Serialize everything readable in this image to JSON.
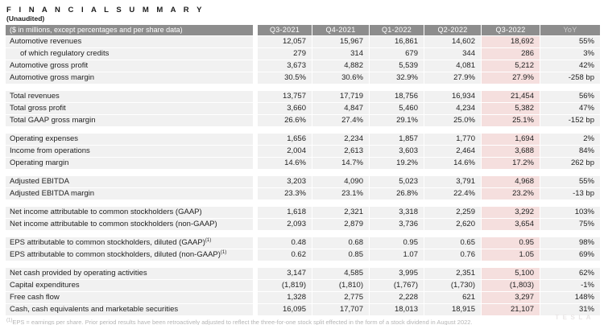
{
  "page": {
    "title": "F I N A N C I A L   S U M M A R Y",
    "subtitle": "(Unaudited)",
    "footnote_sup": "(1)",
    "footnote": "EPS = earnings per share. Prior period results have been retroactively adjusted to reflect the three-for-one stock split effected in the form of a stock dividend in August 2022.",
    "watermark": "TESLA"
  },
  "colors": {
    "header_bg": "#8d8d8d",
    "header_text": "#ffffff",
    "yoy_header_text": "#cfcfcf",
    "row_bg": "#f1f1f1",
    "highlight_bg": "#f5dfde",
    "body_text": "#222222",
    "footnote_text": "#b5b5b5"
  },
  "table": {
    "label_header": "($ in millions, except percentages and per share data)",
    "columns": [
      "Q3-2021",
      "Q4-2021",
      "Q1-2022",
      "Q2-2022",
      "Q3-2022",
      "YoY"
    ],
    "highlight_column_index": 4,
    "sections": [
      {
        "rows": [
          {
            "label": "Automotive revenues",
            "values": [
              "12,057",
              "15,967",
              "16,861",
              "14,602",
              "18,692",
              "55%"
            ]
          },
          {
            "label": "of which regulatory credits",
            "indent": true,
            "values": [
              "279",
              "314",
              "679",
              "344",
              "286",
              "3%"
            ]
          },
          {
            "label": "Automotive gross profit",
            "values": [
              "3,673",
              "4,882",
              "5,539",
              "4,081",
              "5,212",
              "42%"
            ]
          },
          {
            "label": "Automotive gross margin",
            "values": [
              "30.5%",
              "30.6%",
              "32.9%",
              "27.9%",
              "27.9%",
              "-258 bp"
            ]
          }
        ]
      },
      {
        "rows": [
          {
            "label": "Total revenues",
            "values": [
              "13,757",
              "17,719",
              "18,756",
              "16,934",
              "21,454",
              "56%"
            ]
          },
          {
            "label": "Total gross profit",
            "values": [
              "3,660",
              "4,847",
              "5,460",
              "4,234",
              "5,382",
              "47%"
            ]
          },
          {
            "label": "Total GAAP gross margin",
            "values": [
              "26.6%",
              "27.4%",
              "29.1%",
              "25.0%",
              "25.1%",
              "-152 bp"
            ]
          }
        ]
      },
      {
        "rows": [
          {
            "label": "Operating expenses",
            "values": [
              "1,656",
              "2,234",
              "1,857",
              "1,770",
              "1,694",
              "2%"
            ]
          },
          {
            "label": "Income from operations",
            "values": [
              "2,004",
              "2,613",
              "3,603",
              "2,464",
              "3,688",
              "84%"
            ]
          },
          {
            "label": "Operating margin",
            "values": [
              "14.6%",
              "14.7%",
              "19.2%",
              "14.6%",
              "17.2%",
              "262 bp"
            ]
          }
        ]
      },
      {
        "rows": [
          {
            "label": "Adjusted EBITDA",
            "values": [
              "3,203",
              "4,090",
              "5,023",
              "3,791",
              "4,968",
              "55%"
            ]
          },
          {
            "label": "Adjusted EBITDA margin",
            "values": [
              "23.3%",
              "23.1%",
              "26.8%",
              "22.4%",
              "23.2%",
              "-13 bp"
            ]
          }
        ]
      },
      {
        "rows": [
          {
            "label": "Net income attributable to common stockholders (GAAP)",
            "values": [
              "1,618",
              "2,321",
              "3,318",
              "2,259",
              "3,292",
              "103%"
            ]
          },
          {
            "label": "Net income attributable to common stockholders (non-GAAP)",
            "values": [
              "2,093",
              "2,879",
              "3,736",
              "2,620",
              "3,654",
              "75%"
            ]
          }
        ]
      },
      {
        "rows": [
          {
            "label": "EPS attributable to common stockholders, diluted (GAAP)",
            "sup": "(1)",
            "values": [
              "0.48",
              "0.68",
              "0.95",
              "0.65",
              "0.95",
              "98%"
            ]
          },
          {
            "label": "EPS attributable to common stockholders, diluted (non-GAAP)",
            "sup": "(1)",
            "values": [
              "0.62",
              "0.85",
              "1.07",
              "0.76",
              "1.05",
              "69%"
            ]
          }
        ]
      },
      {
        "rows": [
          {
            "label": "Net cash provided by operating activities",
            "values": [
              "3,147",
              "4,585",
              "3,995",
              "2,351",
              "5,100",
              "62%"
            ]
          },
          {
            "label": "Capital expenditures",
            "values": [
              "(1,819)",
              "(1,810)",
              "(1,767)",
              "(1,730)",
              "(1,803)",
              "-1%"
            ]
          },
          {
            "label": "Free cash flow",
            "values": [
              "1,328",
              "2,775",
              "2,228",
              "621",
              "3,297",
              "148%"
            ]
          },
          {
            "label": "Cash, cash equivalents and marketable securities",
            "values": [
              "16,095",
              "17,707",
              "18,013",
              "18,915",
              "21,107",
              "31%"
            ]
          }
        ]
      }
    ]
  }
}
